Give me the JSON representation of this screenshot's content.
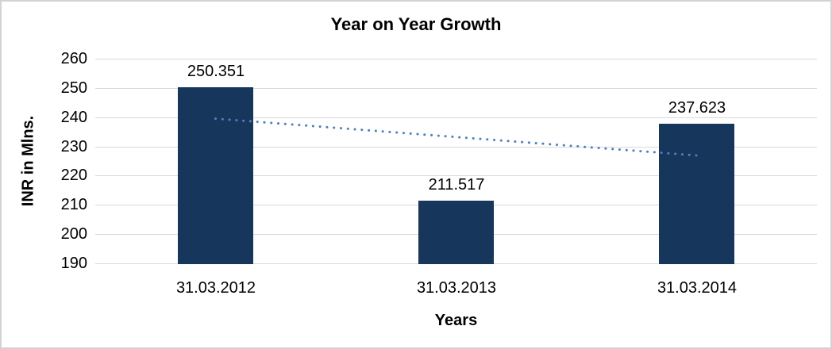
{
  "chart_data": {
    "type": "bar",
    "title": "Year on Year Growth",
    "xlabel": "Years",
    "ylabel": "INR in Mlns.",
    "categories": [
      "31.03.2012",
      "31.03.2013",
      "31.03.2014"
    ],
    "values": [
      250.351,
      211.517,
      237.623
    ],
    "value_labels": [
      "250.351",
      "211.517",
      "237.623"
    ],
    "ylim": [
      190,
      260
    ],
    "yticks": [
      260,
      250,
      240,
      230,
      220,
      210,
      200,
      190
    ],
    "grid": true,
    "legend": "none",
    "bar_color": "#16365c",
    "gridline_color": "#d9d9d9",
    "trendline": {
      "type": "linear",
      "style": "dotted",
      "color": "#4f81bd",
      "start_value": 239.5,
      "end_value": 226.9
    }
  }
}
